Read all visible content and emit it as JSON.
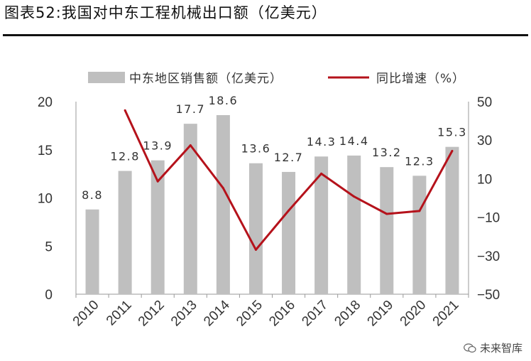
{
  "figure": {
    "title": "图表52:我国对中东工程机械出口额（亿美元）"
  },
  "watermark": {
    "text": "未来智库",
    "icon": "wechat-icon"
  },
  "colors": {
    "bar": "#bfbfbf",
    "line": "#b5121b",
    "axis": "#999999"
  },
  "chart_data": {
    "type": "bar",
    "categories": [
      "2010",
      "2011",
      "2012",
      "2013",
      "2014",
      "2015",
      "2016",
      "2017",
      "2018",
      "2019",
      "2020",
      "2021"
    ],
    "series": [
      {
        "name": "中东地区销售额（亿美元）",
        "kind": "bar",
        "axis": "left",
        "values": [
          8.8,
          12.8,
          13.9,
          17.7,
          18.6,
          13.6,
          12.7,
          14.3,
          14.4,
          13.2,
          12.3,
          15.3
        ],
        "labels": [
          "8.8",
          "12.8",
          "13.9",
          "17.7",
          "18.6",
          "13.6",
          "12.7",
          "14.3",
          "14.4",
          "13.2",
          "12.3",
          "15.3"
        ]
      },
      {
        "name": "同比增速（%）",
        "kind": "line",
        "axis": "right",
        "values": [
          null,
          45.5,
          8.6,
          27.3,
          5.1,
          -26.9,
          -6.6,
          12.6,
          0.7,
          -8.3,
          -6.8,
          24.4
        ]
      }
    ],
    "y_left": {
      "ylim": [
        0,
        20
      ],
      "ticks": [
        "0",
        "5",
        "10",
        "15",
        "20"
      ],
      "tick_values": [
        0,
        5,
        10,
        15,
        20
      ]
    },
    "y_right": {
      "ylim": [
        -50,
        50
      ],
      "ticks": [
        "−50",
        "−30",
        "−10",
        "10",
        "30",
        "50"
      ],
      "tick_values": [
        -50,
        -30,
        -10,
        10,
        30,
        50
      ]
    },
    "legend": {
      "placement": "top"
    },
    "grid": false
  }
}
